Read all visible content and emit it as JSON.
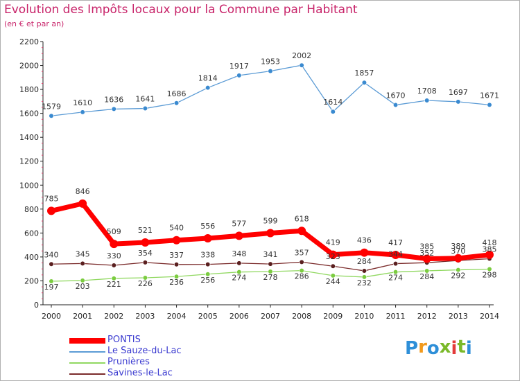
{
  "title": "Evolution des Impôts locaux pour la Commune par Habitant",
  "subtitle": "(en € et par an)",
  "logo": {
    "text": "Proxiti",
    "colors": [
      "#2e8fd8",
      "#f29a1c",
      "#2e8fd8",
      "#7ab929",
      "#e33a3a",
      "#7ab929",
      "#2e8fd8"
    ]
  },
  "chart_data": {
    "type": "line",
    "title": "Evolution des Impôts locaux pour la Commune par Habitant",
    "subtitle": "(en € et par an)",
    "x": [
      "2000",
      "2001",
      "2002",
      "2003",
      "2004",
      "2005",
      "2006",
      "2007",
      "2008",
      "2009",
      "2010",
      "2011",
      "2012",
      "2013",
      "2014"
    ],
    "ylim": [
      0,
      2200
    ],
    "yticks": [
      "0",
      "200",
      "400",
      "600",
      "800",
      "1000",
      "1200",
      "1400",
      "1600",
      "1800",
      "2000",
      "2200"
    ],
    "grid": false,
    "legend_position": "bottom-left",
    "series": [
      {
        "name": "PONTIS",
        "color": "#ff0000",
        "values": [
          785,
          846,
          509,
          521,
          540,
          556,
          577,
          599,
          618,
          419,
          436,
          417,
          385,
          389,
          418
        ],
        "labels": [
          "785",
          "846",
          "509",
          "521",
          "540",
          "556",
          "577",
          "599",
          "618",
          "419",
          "436",
          "417",
          "385",
          "389",
          "418"
        ]
      },
      {
        "name": "Le Sauze-du-Lac",
        "color": "#5b9bd5",
        "values": [
          1579,
          1610,
          1636,
          1641,
          1686,
          1814,
          1917,
          1953,
          2002,
          1614,
          1857,
          1670,
          1708,
          1697,
          1671
        ],
        "labels": [
          "1579",
          "1610",
          "1636",
          "1641",
          "1686",
          "1814",
          "1917",
          "1953",
          "2002",
          "1614",
          "1857",
          "1670",
          "1708",
          "1697",
          "1671"
        ]
      },
      {
        "name": "Prunières",
        "color": "#90d860",
        "values": [
          197,
          203,
          221,
          226,
          236,
          256,
          274,
          278,
          286,
          244,
          232,
          274,
          284,
          292,
          298
        ],
        "labels": [
          "197",
          "203",
          "221",
          "226",
          "236",
          "256",
          "274",
          "278",
          "286",
          "244",
          "232",
          "274",
          "284",
          "292",
          "298"
        ]
      },
      {
        "name": "Savines-le-Lac",
        "color": "#7a2a2a",
        "values": [
          340,
          345,
          330,
          354,
          337,
          338,
          348,
          341,
          357,
          323,
          284,
          344,
          352,
          370,
          385
        ],
        "labels": [
          "340",
          "345",
          "330",
          "354",
          "337",
          "338",
          "348",
          "341",
          "357",
          "323",
          "284",
          "344",
          "352",
          "370",
          "385"
        ]
      }
    ]
  }
}
